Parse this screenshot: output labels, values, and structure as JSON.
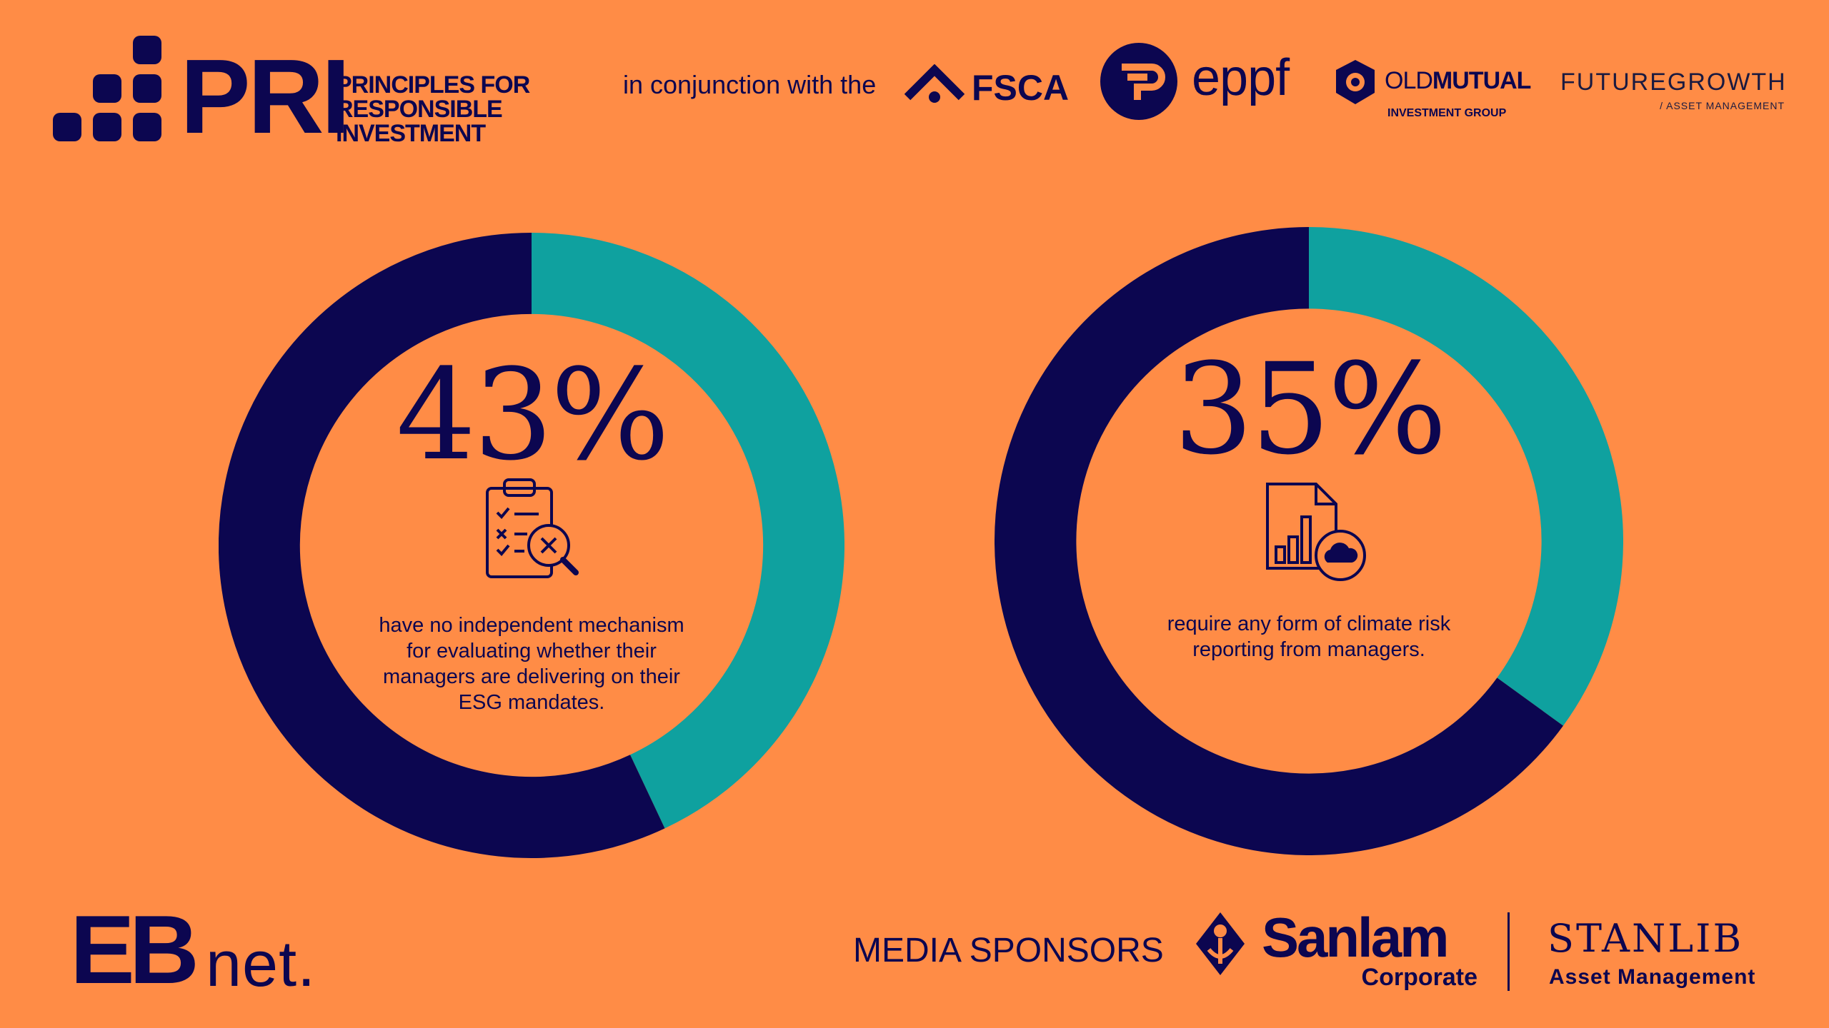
{
  "colors": {
    "background": "#FF8C46",
    "navy": "#0C0650",
    "teal": "#0FA19F"
  },
  "header": {
    "pri": {
      "wordmark": "PRI",
      "subtitle_lines": [
        "PRINCIPLES FOR",
        "RESPONSIBLE",
        "INVESTMENT"
      ]
    },
    "conjunction_text": "in conjunction with the",
    "partners": {
      "fsca": "FSCA",
      "eppf": "eppf",
      "oldmutual_light": "OLD",
      "oldmutual_bold": "MUTUAL",
      "oldmutual_sub": "INVESTMENT GROUP",
      "futuregrowth": "FUTUREGROWTH",
      "futuregrowth_sub": "/ ASSET MANAGEMENT"
    }
  },
  "chart_data": [
    {
      "type": "pie",
      "value_label": "43%",
      "slices": [
        {
          "label": "highlighted",
          "value": 43,
          "color": "#0FA19F"
        },
        {
          "label": "remainder",
          "value": 57,
          "color": "#0C0650"
        }
      ],
      "caption_lines": [
        "have no independent mechanism",
        "for evaluating whether their",
        "managers are delivering on their",
        "ESG mandates."
      ],
      "icon": "checklist-magnifier-icon"
    },
    {
      "type": "pie",
      "value_label": "35%",
      "slices": [
        {
          "label": "highlighted",
          "value": 35,
          "color": "#0FA19F"
        },
        {
          "label": "remainder",
          "value": 65,
          "color": "#0C0650"
        }
      ],
      "caption_lines": [
        "require any form of climate risk",
        "reporting from managers."
      ],
      "icon": "report-cloud-icon"
    }
  ],
  "footer": {
    "ebnet_bold": "EB",
    "ebnet_light": "net.",
    "media_sponsors": "MEDIA SPONSORS",
    "sanlam": "Sanlam",
    "sanlam_sub": "Corporate",
    "stanlib": "STANLIB",
    "stanlib_sub": "Asset Management"
  }
}
